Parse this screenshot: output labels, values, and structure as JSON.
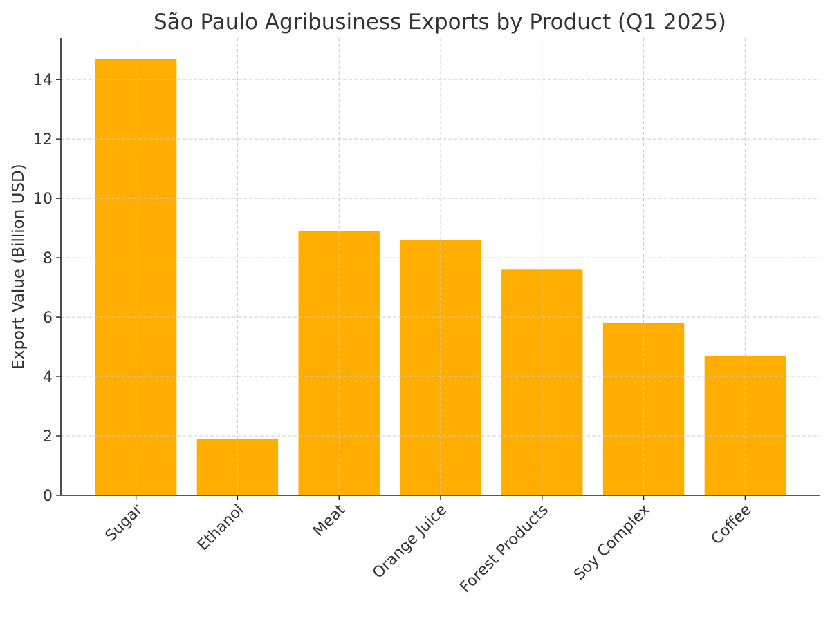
{
  "chart_data": {
    "type": "bar",
    "title": "São Paulo Agribusiness Exports by Product (Q1 2025)",
    "xlabel": "",
    "ylabel": "Export Value (Billion USD)",
    "categories": [
      "Sugar",
      "Ethanol",
      "Meat",
      "Orange Juice",
      "Forest Products",
      "Soy Complex",
      "Coffee"
    ],
    "values": [
      14.7,
      1.9,
      8.9,
      8.6,
      7.6,
      5.8,
      4.7
    ],
    "yticks": [
      0,
      2,
      4,
      6,
      8,
      10,
      12,
      14
    ],
    "ylim": [
      0,
      15.4
    ],
    "grid": true,
    "bar_color": "#FFAE00",
    "grid_color": "#cccccc"
  }
}
